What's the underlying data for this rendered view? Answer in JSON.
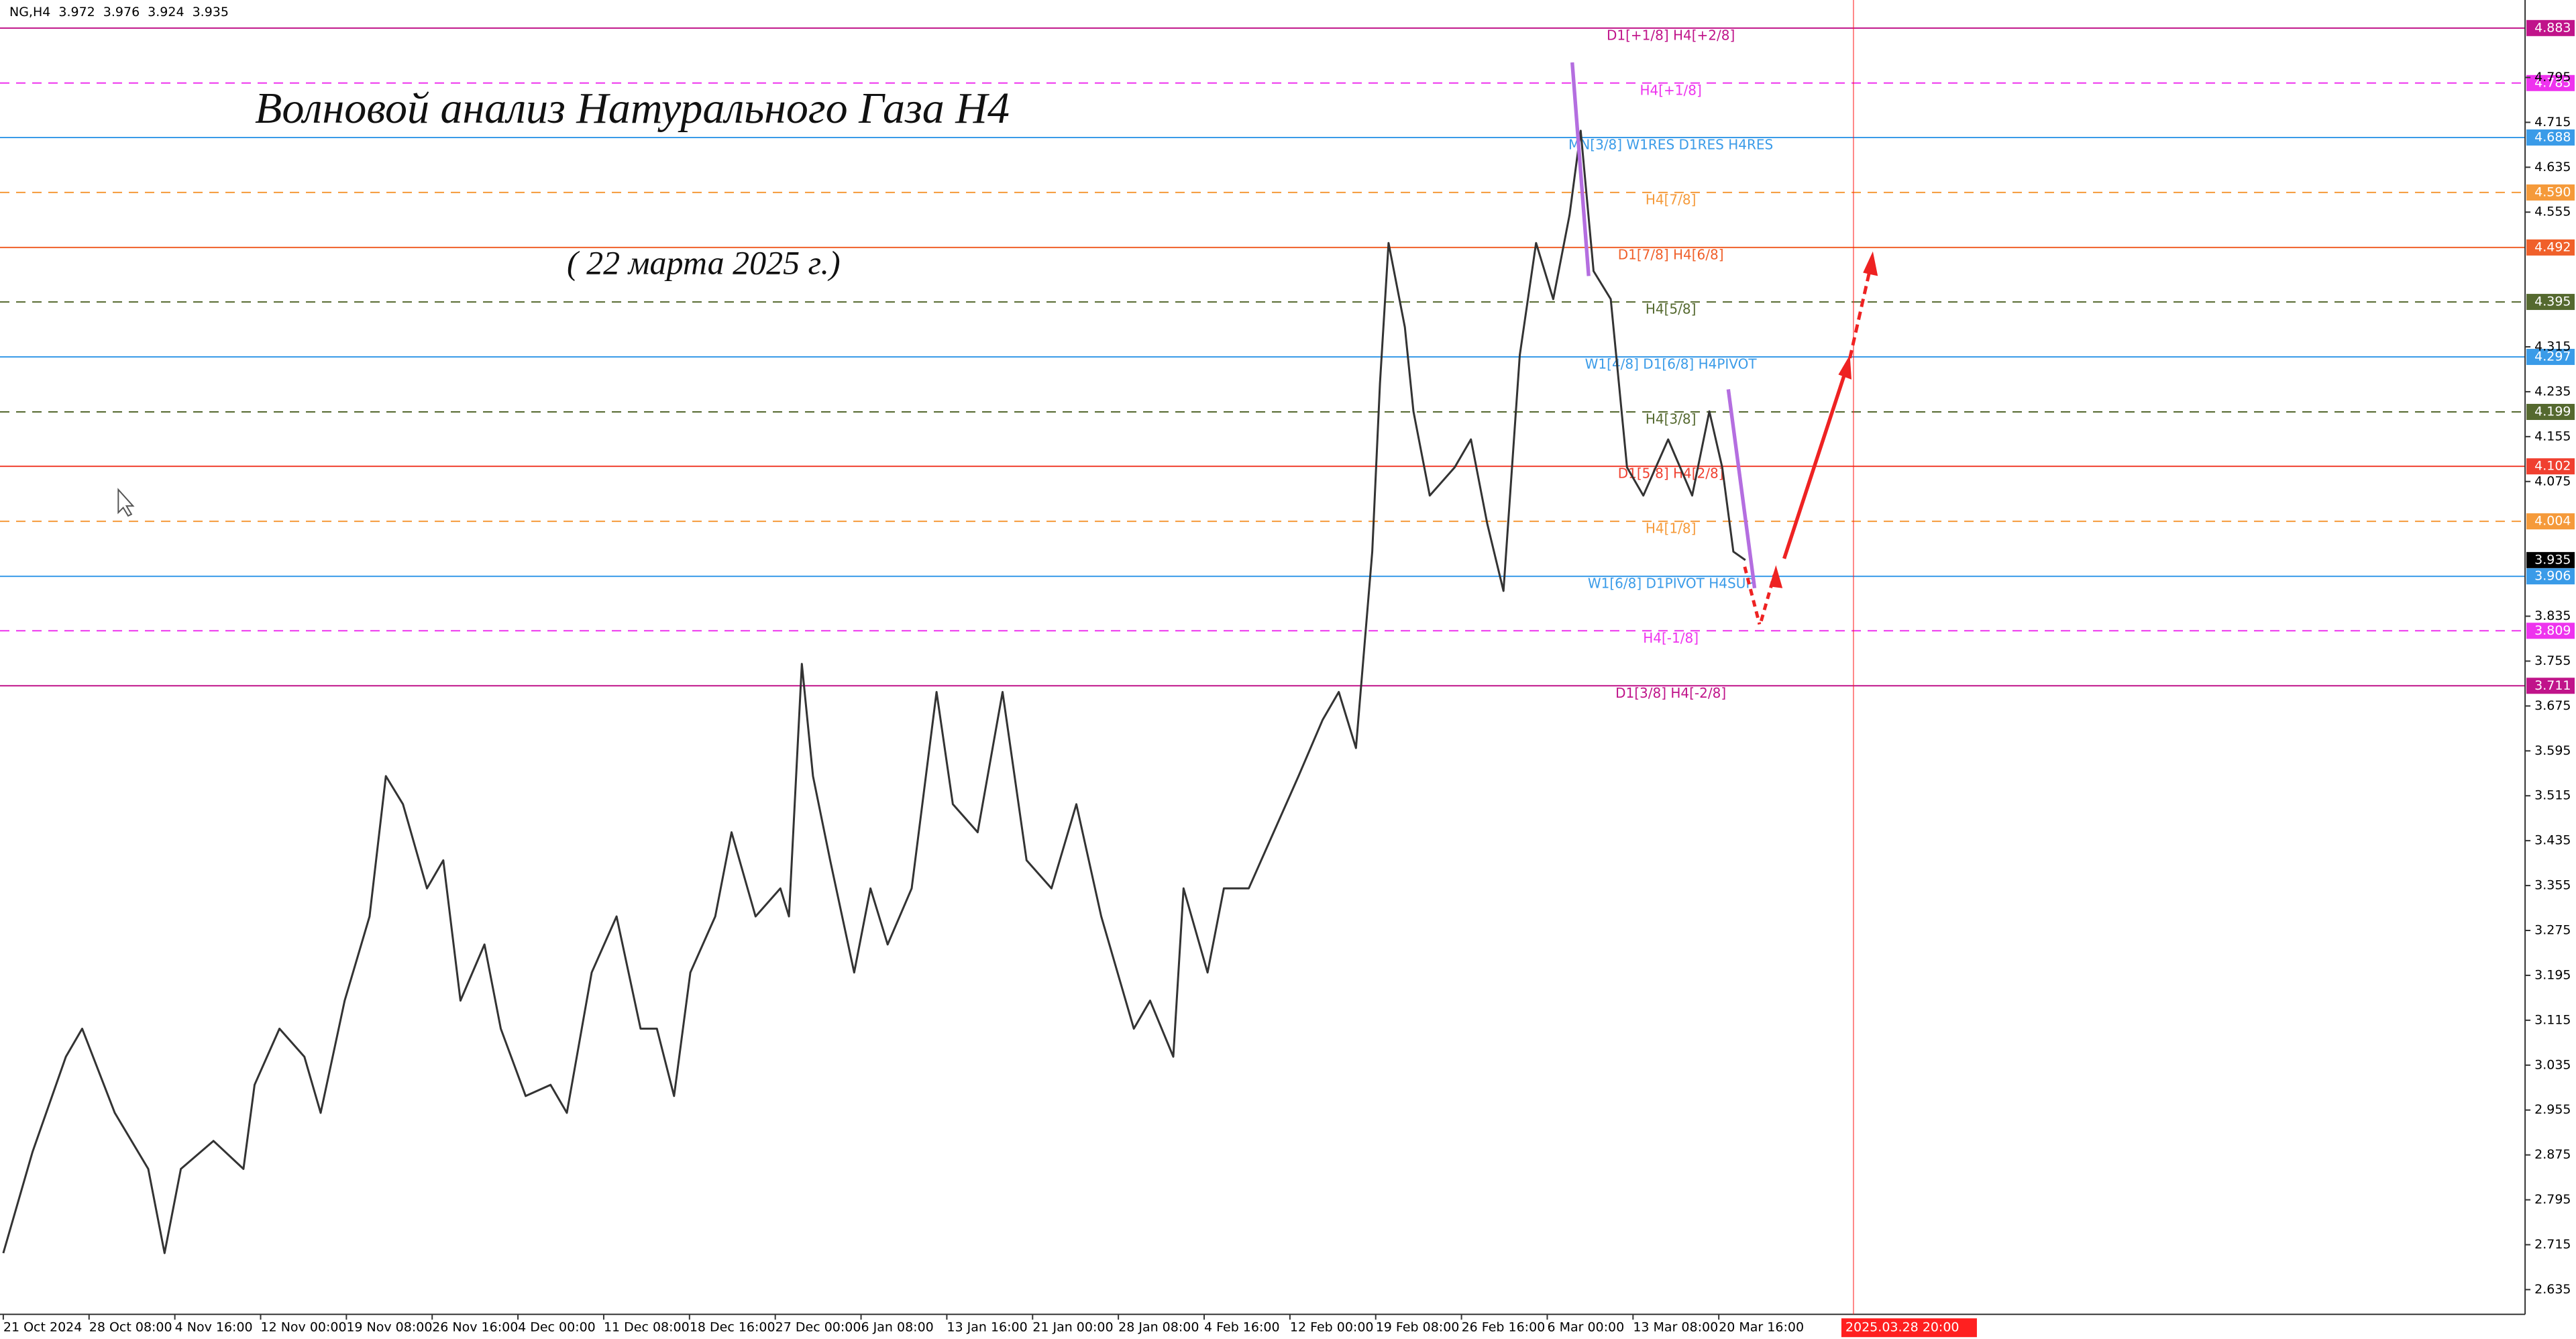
{
  "chart_data": {
    "type": "line",
    "symbol": "NG,H4",
    "ohlc": [
      3.972,
      3.976,
      3.924,
      3.935
    ],
    "title": "Волновой анализ Натурального Газа H4",
    "subtitle": "( 22 марта 2025 г.)",
    "xlim": [
      0,
      29.4
    ],
    "ylim": [
      2.591,
      4.933
    ],
    "xticks": [
      {
        "value": 0,
        "label": "21 Oct 2024"
      },
      {
        "value": 1,
        "label": "28 Oct 08:00"
      },
      {
        "value": 2,
        "label": "4 Nov 16:00"
      },
      {
        "value": 3,
        "label": "12 Nov 00:00"
      },
      {
        "value": 4,
        "label": "19 Nov 08:00"
      },
      {
        "value": 5,
        "label": "26 Nov 16:00"
      },
      {
        "value": 6,
        "label": "4 Dec 00:00"
      },
      {
        "value": 7,
        "label": "11 Dec 08:00"
      },
      {
        "value": 8,
        "label": "18 Dec 16:00"
      },
      {
        "value": 9,
        "label": "27 Dec 00:00"
      },
      {
        "value": 10,
        "label": "6 Jan 08:00"
      },
      {
        "value": 11,
        "label": "13 Jan 16:00"
      },
      {
        "value": 12,
        "label": "21 Jan 00:00"
      },
      {
        "value": 13,
        "label": "28 Jan 08:00"
      },
      {
        "value": 14,
        "label": "4 Feb 16:00"
      },
      {
        "value": 15,
        "label": "12 Feb 00:00"
      },
      {
        "value": 16,
        "label": "19 Feb 08:00"
      },
      {
        "value": 17,
        "label": "26 Feb 16:00"
      },
      {
        "value": 18,
        "label": "6 Mar 00:00"
      },
      {
        "value": 19,
        "label": "13 Mar 08:00"
      },
      {
        "value": 20,
        "label": "20 Mar 16:00"
      }
    ],
    "cursor": {
      "value": 21.57,
      "label": "2025.03.28 20:00",
      "color": "#ff2020"
    },
    "yticks": [
      2.635,
      2.715,
      2.795,
      2.875,
      2.955,
      3.035,
      3.115,
      3.195,
      3.275,
      3.355,
      3.435,
      3.515,
      3.595,
      3.675,
      3.755,
      3.835,
      4.075,
      4.155,
      4.235,
      4.315,
      4.555,
      4.635,
      4.715,
      4.795
    ],
    "current_price": 3.935,
    "levels": [
      {
        "price": 4.883,
        "label": "D1[+1/8] H4[+2/8]",
        "color": "#c0148a",
        "dashed": false
      },
      {
        "price": 4.785,
        "label": "H4[+1/8]",
        "color": "#ee33ee",
        "dashed": true
      },
      {
        "price": 4.688,
        "label": "MN[3/8] W1RES D1RES H4RES",
        "color": "#3a9be8",
        "dashed": false
      },
      {
        "price": {
          "value": 4.59,
          "label": "4.590"
        },
        "label": "H4[7/8]",
        "color": "#f59a3a",
        "dashed": true
      },
      {
        "price": 4.492,
        "label": "D1[7/8] H4[6/8]",
        "color": "#f0602a",
        "dashed": false
      },
      {
        "price": 4.395,
        "label": "H4[5/8]",
        "color": "#55692f",
        "dashed": true
      },
      {
        "price": 4.297,
        "label": "W1[4/8] D1[6/8] H4PIVOT",
        "color": "#3a9be8",
        "dashed": false
      },
      {
        "price": 4.199,
        "label": "H4[3/8]",
        "color": "#55692f",
        "dashed": true
      },
      {
        "price": 4.102,
        "label": "D1[5/8] H4[2/8]",
        "color": "#f04030",
        "dashed": false
      },
      {
        "price": 4.004,
        "label": "H4[1/8]",
        "color": "#f59a3a",
        "dashed": true
      },
      {
        "price": 3.906,
        "label": "W1[6/8] D1PIVOT H4SUP",
        "color": "#3a9be8",
        "dashed": false
      },
      {
        "price": 3.809,
        "label": "H4[-1/8]",
        "color": "#ee33ee",
        "dashed": true
      },
      {
        "price": 3.711,
        "label": "D1[3/8] H4[-2/8]",
        "color": "#c0148a",
        "dashed": false
      }
    ],
    "series": [
      {
        "name": "NG,H4",
        "color": "#333333",
        "x": [
          0,
          0.34,
          0.73,
          0.92,
          1.3,
          1.69,
          1.88,
          2.07,
          2.45,
          2.8,
          2.93,
          3.22,
          3.51,
          3.7,
          3.98,
          4.27,
          4.46,
          4.66,
          4.94,
          5.13,
          5.33,
          5.61,
          5.8,
          6.09,
          6.38,
          6.57,
          6.86,
          7.15,
          7.43,
          7.62,
          7.82,
          8.01,
          8.3,
          8.49,
          8.77,
          9.06,
          9.16,
          9.31,
          9.44,
          9.64,
          9.92,
          10.11,
          10.31,
          10.59,
          10.88,
          11.07,
          11.36,
          11.65,
          11.93,
          12.22,
          12.51,
          12.8,
          13.18,
          13.37,
          13.64,
          13.76,
          14.04,
          14.23,
          14.52,
          14.81,
          15.1,
          15.38,
          15.57,
          15.77,
          15.96,
          16.05,
          16.15,
          16.34,
          16.44,
          16.63,
          16.92,
          17.11,
          17.3,
          17.49,
          17.68,
          17.87,
          18.07,
          18.26,
          18.39,
          18.54,
          18.74,
          18.93,
          19.12,
          19.41,
          19.69,
          19.89,
          20.04,
          20.17,
          20.31
        ],
        "values": [
          2.7,
          2.88,
          3.05,
          3.1,
          2.95,
          2.85,
          2.7,
          2.85,
          2.9,
          2.85,
          3.0,
          3.1,
          3.05,
          2.95,
          3.15,
          3.3,
          3.55,
          3.5,
          3.35,
          3.4,
          3.15,
          3.25,
          3.1,
          2.98,
          3.0,
          2.95,
          3.2,
          3.3,
          3.1,
          3.1,
          2.98,
          3.2,
          3.3,
          3.45,
          3.3,
          3.35,
          3.3,
          3.75,
          3.55,
          3.4,
          3.2,
          3.35,
          3.25,
          3.35,
          3.7,
          3.5,
          3.45,
          3.7,
          3.4,
          3.35,
          3.5,
          3.3,
          3.1,
          3.15,
          3.05,
          3.35,
          3.2,
          3.35,
          3.35,
          3.45,
          3.55,
          3.65,
          3.7,
          3.6,
          3.95,
          4.25,
          4.5,
          4.35,
          4.2,
          4.05,
          4.1,
          4.15,
          4.0,
          3.88,
          4.3,
          4.5,
          4.4,
          4.55,
          4.7,
          4.45,
          4.4,
          4.1,
          4.05,
          4.15,
          4.05,
          4.2,
          4.1,
          3.95,
          3.935
        ]
      }
    ]
  }
}
